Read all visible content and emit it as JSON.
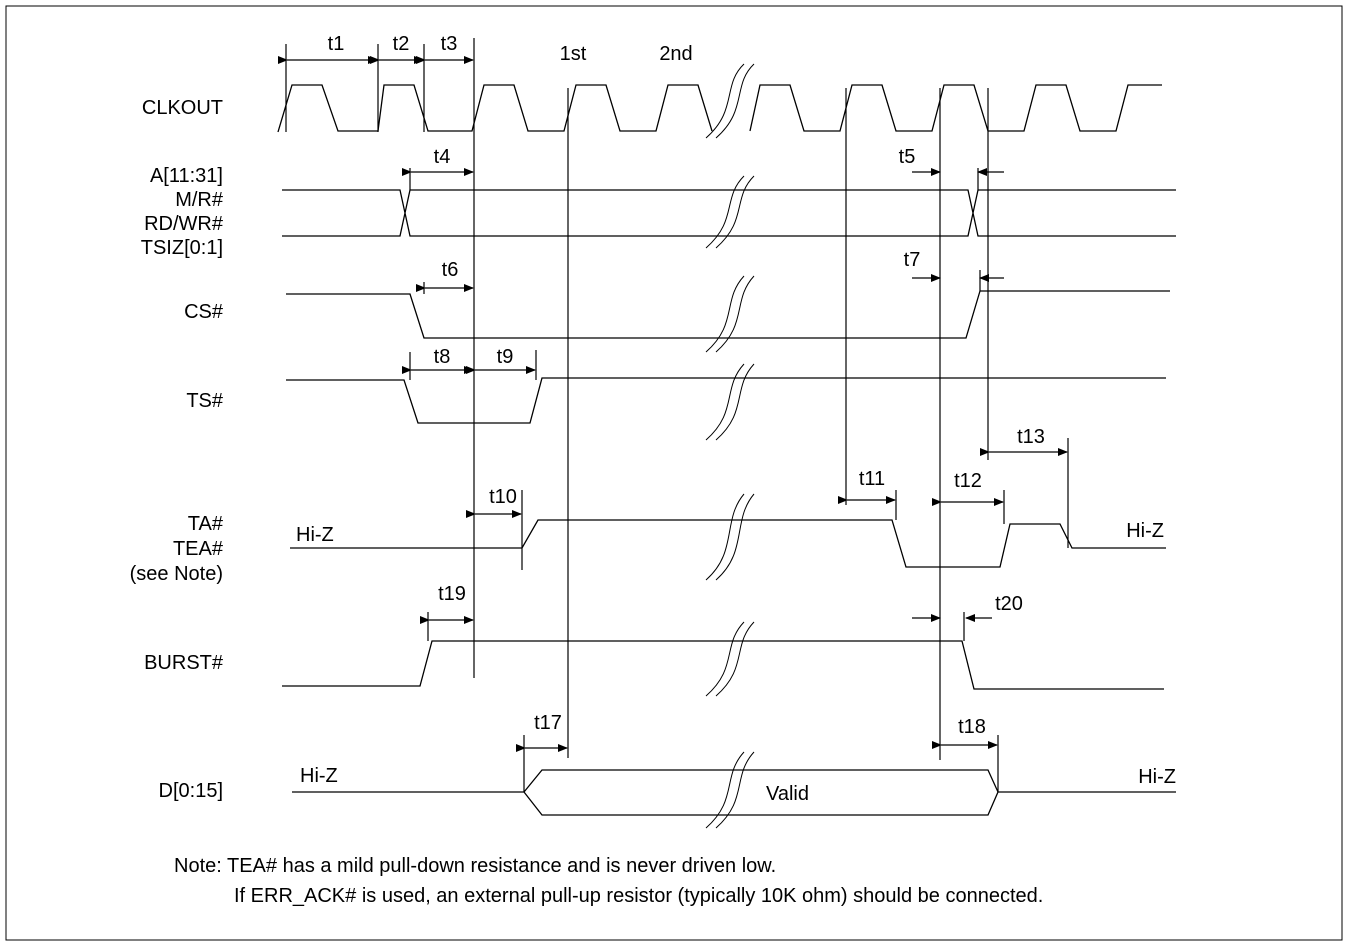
{
  "signals": {
    "clkout": "CLKOUT",
    "addr": [
      "A[11:31]",
      "M/R#",
      "RD/WR#",
      "TSIZ[0:1]"
    ],
    "cs": "CS#",
    "ts": "TS#",
    "ta": [
      "TA#",
      "TEA#",
      "(see Note)"
    ],
    "burst": "BURST#",
    "data": "D[0:15]"
  },
  "clock_labels": {
    "first": "1st",
    "second": "2nd"
  },
  "timing": {
    "t1": "t1",
    "t2": "t2",
    "t3": "t3",
    "t4": "t4",
    "t5": "t5",
    "t6": "t6",
    "t7": "t7",
    "t8": "t8",
    "t9": "t9",
    "t10": "t10",
    "t11": "t11",
    "t12": "t12",
    "t13": "t13",
    "t17": "t17",
    "t18": "t18",
    "t19": "t19",
    "t20": "t20"
  },
  "states": {
    "hiz": "Hi-Z",
    "valid": "Valid"
  },
  "note": {
    "line1": "Note: TEA# has a mild pull-down resistance and is never driven low.",
    "line2": "If ERR_ACK# is used, an external pull-up resistor (typically 10K ohm) should be connected."
  }
}
